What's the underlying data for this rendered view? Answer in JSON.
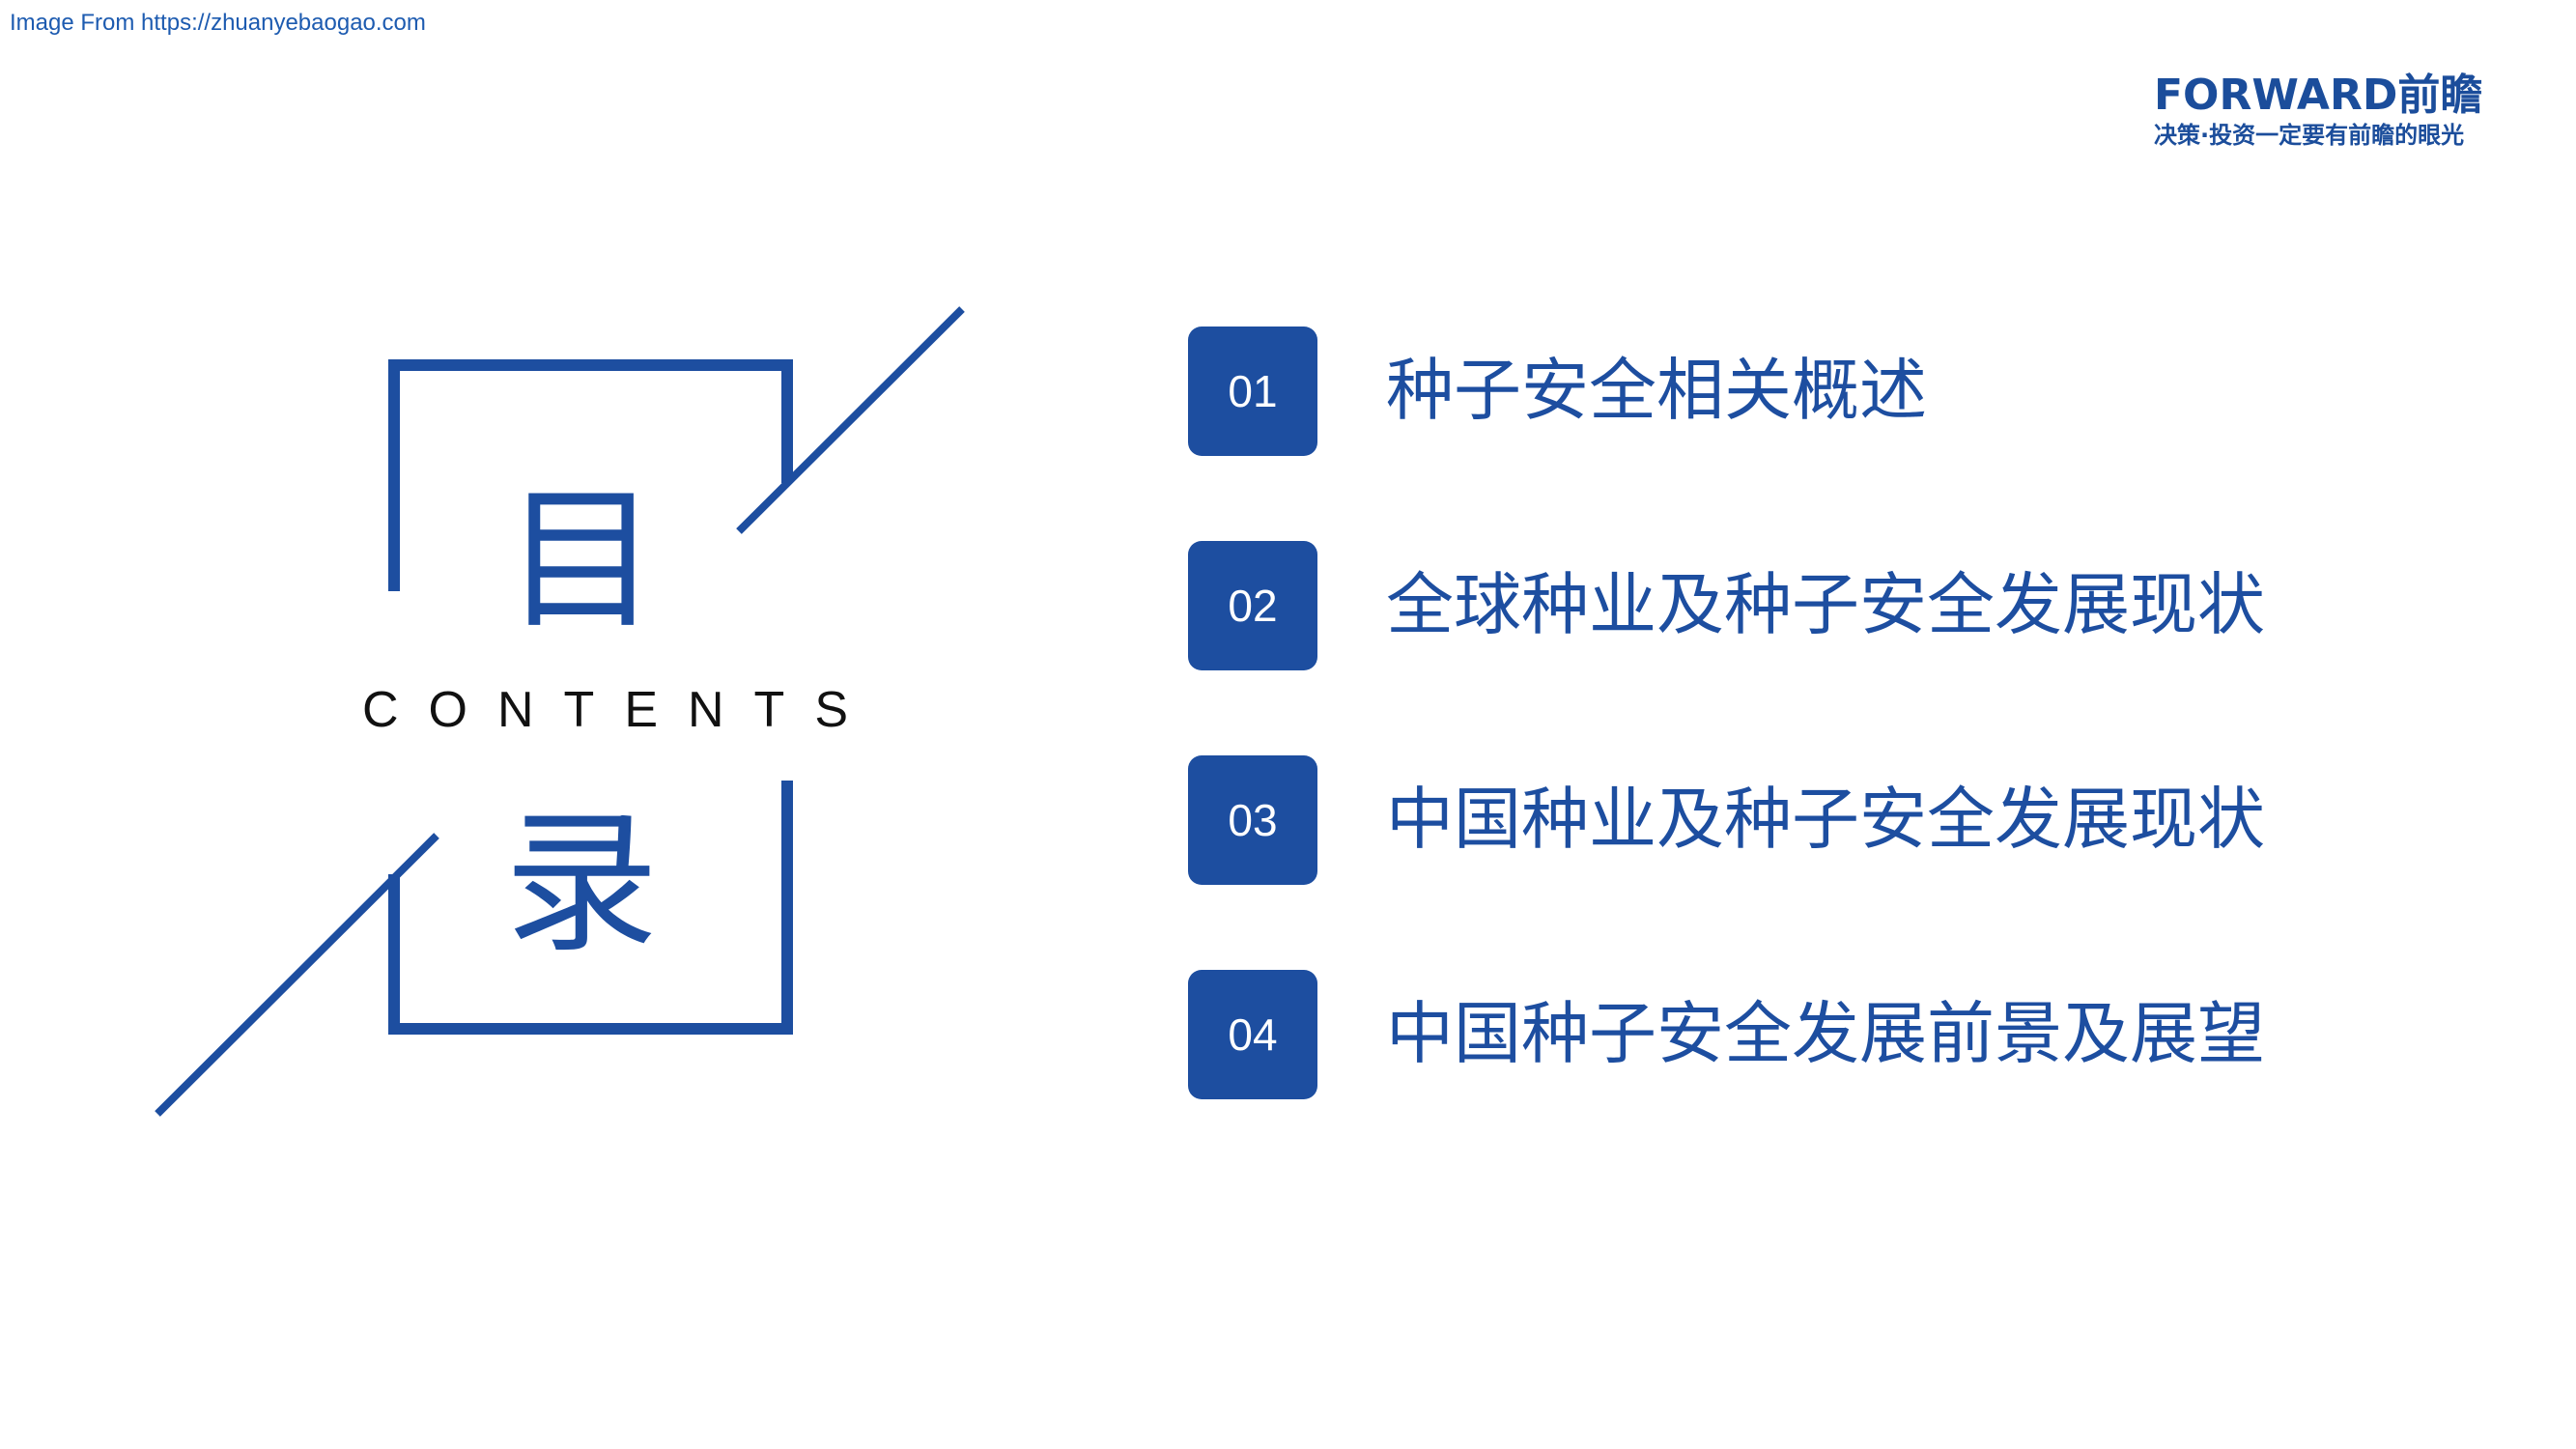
{
  "source_note": "Image From https://zhuanyebaogao.com",
  "logo": {
    "brand": "FORWARD前瞻",
    "slogan": "决策·投资一定要有前瞻的眼光"
  },
  "heading": {
    "char_top": "目",
    "char_bottom": "录",
    "subtitle": "CONTENTS"
  },
  "colors": {
    "accent": "#1d4ea0",
    "text_dark": "#111111",
    "background": "#ffffff"
  },
  "toc": [
    {
      "number": "01",
      "title": "种子安全相关概述"
    },
    {
      "number": "02",
      "title": "全球种业及种子安全发展现状"
    },
    {
      "number": "03",
      "title": "中国种业及种子安全发展现状"
    },
    {
      "number": "04",
      "title": "中国种子安全发展前景及展望"
    }
  ]
}
